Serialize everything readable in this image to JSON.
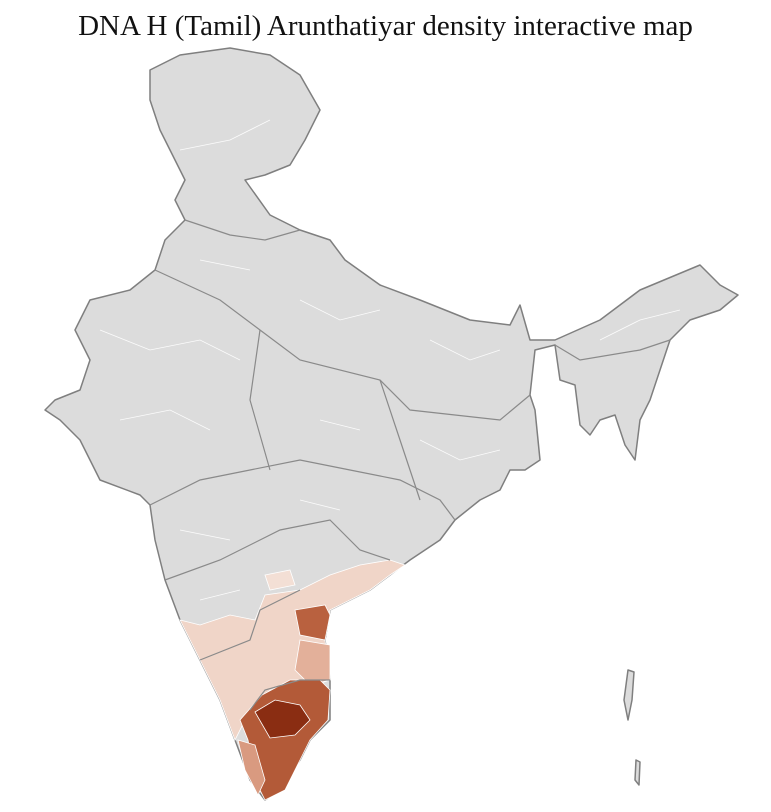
{
  "title": "DNA H (Tamil) Arunthatiyar density interactive map"
}
